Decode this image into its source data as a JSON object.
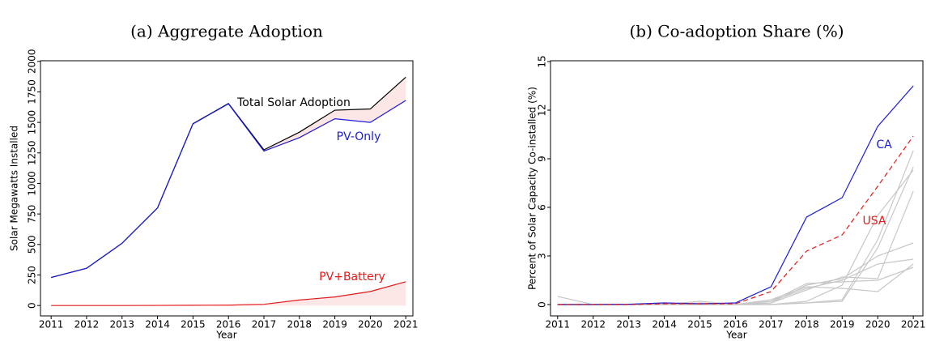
{
  "chart_data": [
    {
      "type": "line",
      "title": "(a) Aggregate Adoption",
      "xlabel": "Year",
      "ylabel": "Solar Megawatts Installed",
      "x": [
        2011,
        2012,
        2013,
        2014,
        2015,
        2016,
        2017,
        2018,
        2019,
        2020,
        2021
      ],
      "xlim": [
        2010.7,
        2021.2
      ],
      "xticks": [
        2011,
        2012,
        2013,
        2014,
        2015,
        2016,
        2017,
        2018,
        2019,
        2020,
        2021
      ],
      "ylim": [
        -85,
        2005
      ],
      "yticks": [
        0,
        250,
        500,
        750,
        1000,
        1250,
        1500,
        1750,
        2000
      ],
      "shade": "#fde6e6",
      "series": [
        {
          "name": "Total Solar Adoption",
          "color": "#000000",
          "values": [
            230,
            305,
            510,
            800,
            1490,
            1655,
            1275,
            1420,
            1600,
            1610,
            1870
          ],
          "fill_to_series": 1
        },
        {
          "name": "PV-Only",
          "color": "#1a1adb",
          "values": [
            230,
            305,
            510,
            800,
            1488,
            1652,
            1265,
            1375,
            1530,
            1500,
            1680
          ]
        },
        {
          "name": "PV+Battery",
          "color": "#e41a1a",
          "values": [
            0,
            0,
            0,
            1,
            2,
            3,
            10,
            45,
            70,
            115,
            195
          ],
          "fill_to_axis": true
        }
      ]
    },
    {
      "type": "line",
      "title": "(b) Co-adoption Share (%)",
      "xlabel": "Year",
      "ylabel": "Percent of Solar Capacity Co-installed (%)",
      "x": [
        2011,
        2012,
        2013,
        2014,
        2015,
        2016,
        2017,
        2018,
        2019,
        2020,
        2021
      ],
      "xlim": [
        2010.8,
        2021.27
      ],
      "xticks": [
        2011,
        2012,
        2013,
        2014,
        2015,
        2016,
        2017,
        2018,
        2019,
        2020,
        2021
      ],
      "ylim": [
        -0.7,
        15.05
      ],
      "yticks": [
        0,
        3,
        6,
        9,
        12,
        15
      ],
      "series": [
        {
          "color": "#c8c8c8",
          "values": [
            0.5,
            0,
            0,
            0,
            0,
            0,
            0.1,
            1.2,
            1.6,
            3.0,
            3.8
          ]
        },
        {
          "color": "#c8c8c8",
          "values": [
            0,
            0,
            0,
            0.1,
            0,
            0,
            0.2,
            1.0,
            1.5,
            2.5,
            2.8
          ]
        },
        {
          "color": "#c8c8c8",
          "values": [
            0,
            0,
            0,
            0,
            0.1,
            0,
            0.3,
            1.1,
            1.0,
            0.8,
            2.5
          ]
        },
        {
          "color": "#c8c8c8",
          "values": [
            0,
            0,
            0,
            0,
            0,
            0,
            0,
            0.2,
            1.2,
            5.5,
            8.3
          ]
        },
        {
          "color": "#c8c8c8",
          "values": [
            0,
            0,
            0,
            0,
            0,
            0,
            0,
            0.1,
            0.3,
            4.0,
            9.5
          ]
        },
        {
          "color": "#c8c8c8",
          "values": [
            0,
            0,
            0,
            0,
            0,
            0,
            0.1,
            0.9,
            1.7,
            1.6,
            7.0
          ]
        },
        {
          "color": "#c8c8c8",
          "values": [
            0,
            0,
            0,
            0,
            0,
            0,
            0,
            0.1,
            0.2,
            3.5,
            8.5
          ]
        },
        {
          "color": "#c8c8c8",
          "values": [
            0,
            0,
            0,
            0,
            0.2,
            0,
            0.2,
            1.3,
            1.4,
            1.5,
            2.3
          ]
        },
        {
          "name": "CA",
          "color": "#1a1adb",
          "values": [
            0,
            0,
            0.02,
            0.1,
            0.05,
            0.1,
            1.1,
            5.4,
            6.6,
            11,
            13.5
          ]
        },
        {
          "name": "USA",
          "color": "#e41a1a",
          "dash": true,
          "values": [
            0,
            0,
            0,
            0.05,
            0.05,
            0.05,
            0.8,
            3.3,
            4.3,
            7.3,
            10.4
          ]
        }
      ]
    }
  ]
}
